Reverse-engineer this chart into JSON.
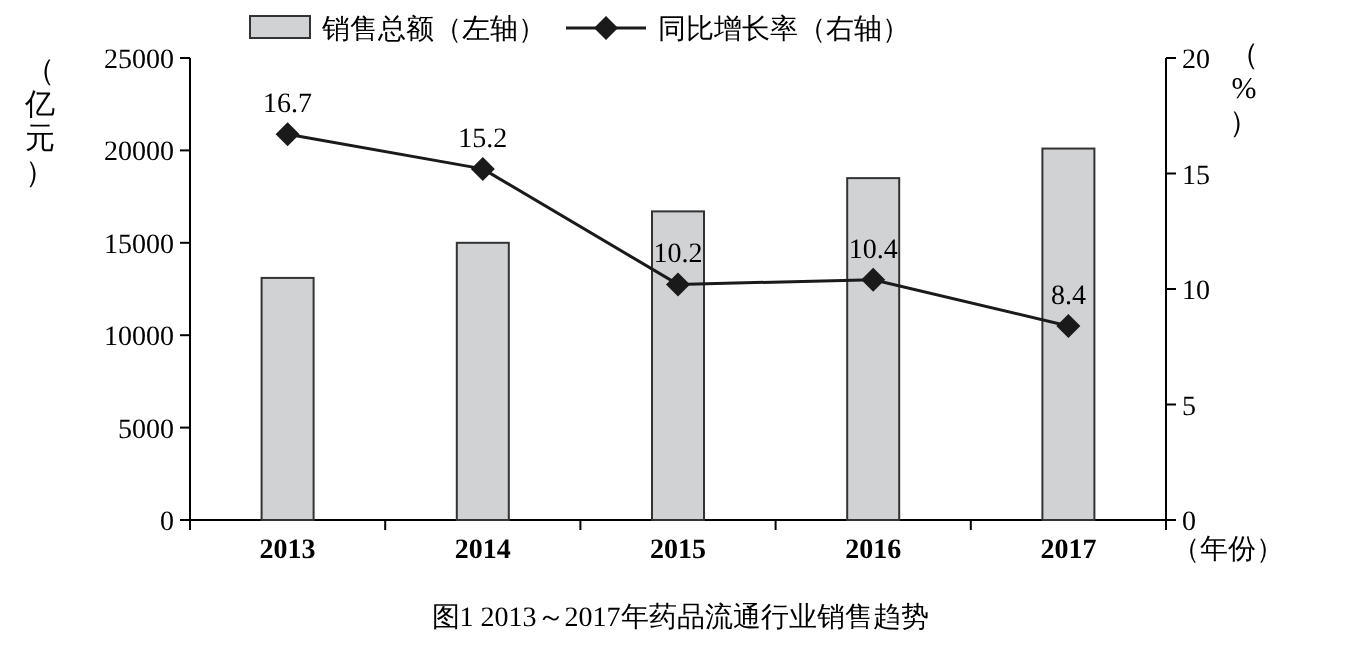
{
  "chart_data": {
    "type": "bar",
    "title": "图1 2013～2017年药品流通行业销售趋势",
    "xlabel": "（年份）",
    "ylabel": "（亿元）",
    "y2label": "（%）",
    "categories": [
      "2013",
      "2014",
      "2015",
      "2016",
      "2017"
    ],
    "series": [
      {
        "name": "销售总额（左轴）",
        "color": "#d0d2d4",
        "values": [
          13100,
          15000,
          16700,
          18500,
          20100
        ]
      },
      {
        "name": "同比增长率（右轴）",
        "type": "line",
        "axis": "y2",
        "color": "#1a1a1a",
        "values": [
          16.7,
          15.2,
          10.2,
          10.4,
          8.4
        ],
        "value_labels": [
          "16.7",
          "15.2",
          "10.2",
          "10.4",
          "8.4"
        ]
      }
    ],
    "ylim": [
      0,
      25000
    ],
    "yticks": [
      0,
      5000,
      10000,
      15000,
      20000,
      25000
    ],
    "y2lim": [
      0,
      20
    ],
    "y2ticks": [
      0,
      5,
      10,
      15,
      20
    ],
    "marker": "diamond",
    "legend": "top",
    "grid": false
  }
}
